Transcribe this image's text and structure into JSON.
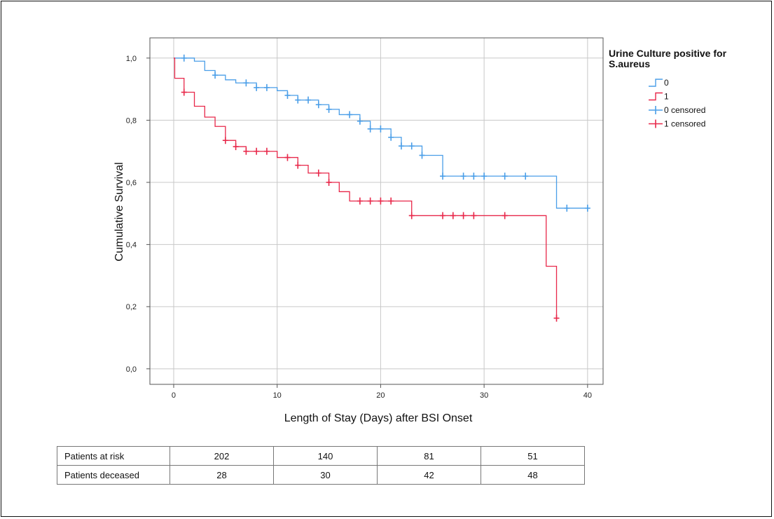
{
  "chart_data": {
    "type": "line",
    "step": true,
    "xlabel": "Length of Stay (Days) after BSI Onset",
    "ylabel": "Cumulative Survival",
    "xlim": [
      -2.3,
      41.5
    ],
    "ylim": [
      -0.05,
      1.065
    ],
    "x_ticks": [
      0,
      10,
      20,
      30,
      40
    ],
    "x_tick_labels": [
      "0",
      "10",
      "20",
      "30",
      "40"
    ],
    "y_ticks": [
      0.0,
      0.2,
      0.4,
      0.6,
      0.8,
      1.0
    ],
    "y_tick_labels": [
      "0,0",
      "0,2",
      "0,4",
      "0,6",
      "0,8",
      "1,0"
    ],
    "grid": true,
    "legend": {
      "title": "Urine Culture positive for S.aureus",
      "title_lines": [
        "Urine Culture positive for",
        "S.aureus"
      ],
      "placement": "right",
      "entries": [
        {
          "label": "0",
          "kind": "line",
          "color": "#4a9ee8"
        },
        {
          "label": "1",
          "kind": "line",
          "color": "#e8284a"
        },
        {
          "label": "0 censored",
          "kind": "censor",
          "color": "#4a9ee8"
        },
        {
          "label": "1 censored",
          "kind": "censor",
          "color": "#e8284a"
        }
      ]
    },
    "series": [
      {
        "name": "0",
        "color": "#4a9ee8",
        "steps": [
          [
            0,
            1.0
          ],
          [
            2,
            0.99
          ],
          [
            3,
            0.96
          ],
          [
            4,
            0.945
          ],
          [
            5,
            0.93
          ],
          [
            6,
            0.92
          ],
          [
            8,
            0.905
          ],
          [
            10,
            0.895
          ],
          [
            11,
            0.88
          ],
          [
            12,
            0.865
          ],
          [
            14,
            0.85
          ],
          [
            15,
            0.835
          ],
          [
            16,
            0.818
          ],
          [
            18,
            0.797
          ],
          [
            19,
            0.772
          ],
          [
            21,
            0.745
          ],
          [
            22,
            0.717
          ],
          [
            24,
            0.687
          ],
          [
            26,
            0.62
          ],
          [
            37,
            0.517
          ],
          [
            40,
            0.517
          ]
        ],
        "censored_x": [
          1,
          4,
          7,
          8,
          9,
          11,
          12,
          13,
          14,
          15,
          17,
          18,
          19,
          20,
          21,
          22,
          23,
          24,
          26,
          28,
          29,
          30,
          32,
          34,
          38,
          40
        ]
      },
      {
        "name": "1",
        "color": "#e8284a",
        "steps": [
          [
            0,
            1.0
          ],
          [
            0.1,
            0.935
          ],
          [
            1,
            0.89
          ],
          [
            2,
            0.845
          ],
          [
            3,
            0.81
          ],
          [
            4,
            0.78
          ],
          [
            5,
            0.735
          ],
          [
            6,
            0.715
          ],
          [
            7,
            0.7
          ],
          [
            10,
            0.68
          ],
          [
            12,
            0.655
          ],
          [
            13,
            0.63
          ],
          [
            15,
            0.6
          ],
          [
            16,
            0.57
          ],
          [
            17,
            0.54
          ],
          [
            23,
            0.493
          ],
          [
            36,
            0.33
          ],
          [
            37,
            0.163
          ]
        ],
        "censored_x": [
          1,
          5,
          6,
          7,
          8,
          9,
          11,
          12,
          14,
          15,
          18,
          19,
          20,
          21,
          23,
          26,
          27,
          28,
          29,
          32,
          37
        ]
      }
    ]
  },
  "risk_table": {
    "rows": [
      {
        "label": "Patients at risk",
        "values": [
          "202",
          "140",
          "81",
          "51"
        ]
      },
      {
        "label": "Patients deceased",
        "values": [
          "28",
          "30",
          "42",
          "48"
        ]
      }
    ]
  }
}
